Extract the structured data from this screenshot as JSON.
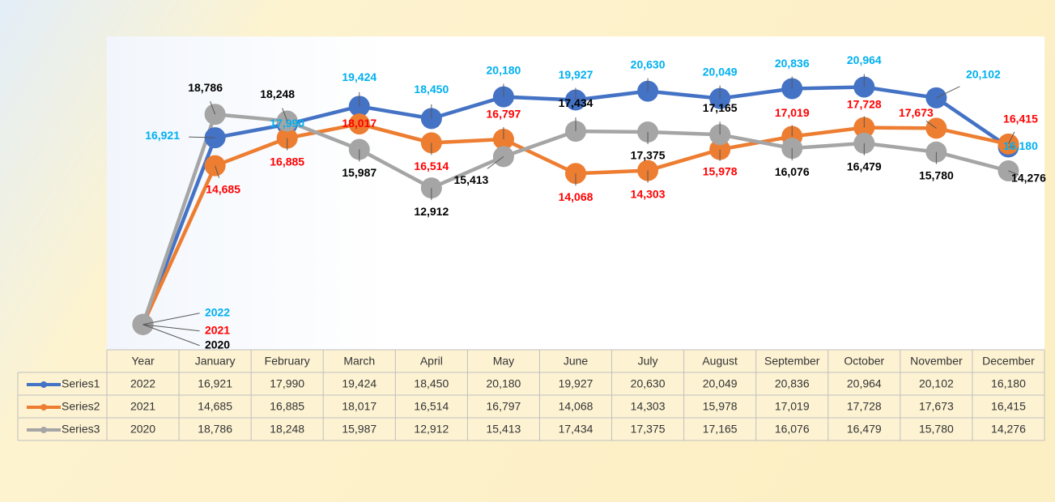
{
  "chart_data": {
    "type": "line",
    "categories": [
      "Year",
      "January",
      "February",
      "March",
      "April",
      "May",
      "June",
      "July",
      "August",
      "September",
      "October",
      "November",
      "December"
    ],
    "ylim": [
      0,
      25000
    ],
    "series": [
      {
        "name": "Series1",
        "color": "#4472c4",
        "label_color": "#00b0f0",
        "values": [
          2022,
          16921,
          17990,
          19424,
          18450,
          20180,
          19927,
          20630,
          20049,
          20836,
          20964,
          20102,
          16180
        ],
        "value_labels": [
          "2022",
          "16,921",
          "17,990",
          "19,424",
          "18,450",
          "20,180",
          "19,927",
          "20,630",
          "20,049",
          "20,836",
          "20,964",
          "20,102",
          "16,180"
        ]
      },
      {
        "name": "Series2",
        "color": "#ed7d31",
        "label_color": "#ff0000",
        "values": [
          2021,
          14685,
          16885,
          18017,
          16514,
          16797,
          14068,
          14303,
          15978,
          17019,
          17728,
          17673,
          16415
        ],
        "value_labels": [
          "2021",
          "14,685",
          "16,885",
          "18,017",
          "16,514",
          "16,797",
          "14,068",
          "14,303",
          "15,978",
          "17,019",
          "17,728",
          "17,673",
          "16,415"
        ]
      },
      {
        "name": "Series3",
        "color": "#a5a5a5",
        "label_color": "#000000",
        "values": [
          2020,
          18786,
          18248,
          15987,
          12912,
          15413,
          17434,
          17375,
          17165,
          16076,
          16479,
          15780,
          14276
        ],
        "value_labels": [
          "2020",
          "18,786",
          "18,248",
          "15,987",
          "12,912",
          "15,413",
          "17,434",
          "17,375",
          "17,165",
          "16,076",
          "16,479",
          "15,780",
          "14,276"
        ]
      }
    ]
  }
}
